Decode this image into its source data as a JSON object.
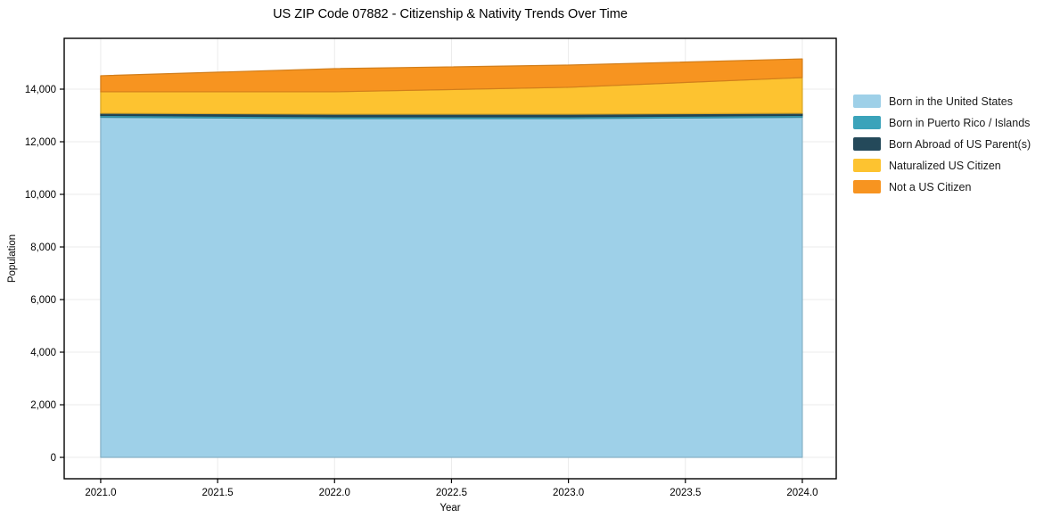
{
  "chart_data": {
    "type": "area",
    "stacked": true,
    "title": "US ZIP Code 07882 - Citizenship & Nativity Trends Over Time",
    "xlabel": "Year",
    "ylabel": "Population",
    "x": [
      2021,
      2022,
      2023,
      2024
    ],
    "series": [
      {
        "name": "Born in the United States",
        "color": "#9ED0E8",
        "values": [
          12930,
          12880,
          12880,
          12930
        ]
      },
      {
        "name": "Born in Puerto Rico / Islands",
        "color": "#3BA3BA",
        "values": [
          70,
          70,
          70,
          70
        ]
      },
      {
        "name": "Born Abroad of US Parent(s)",
        "color": "#24495A",
        "values": [
          85,
          100,
          100,
          85
        ]
      },
      {
        "name": "Naturalized US Citizen",
        "color": "#FDC330",
        "values": [
          815,
          850,
          1020,
          1355
        ]
      },
      {
        "name": "Not a US Citizen",
        "color": "#F79420",
        "values": [
          610,
          880,
          845,
          710
        ]
      }
    ],
    "xlim": [
      2020.844,
      2024.145
    ],
    "ylim": [
      -813,
      15932
    ],
    "x_ticks": [
      2021.0,
      2021.5,
      2022.0,
      2022.5,
      2023.0,
      2023.5,
      2024.0
    ],
    "x_tick_labels": [
      "2021.0",
      "2021.5",
      "2022.0",
      "2022.5",
      "2023.0",
      "2023.5",
      "2024.0"
    ],
    "y_ticks": [
      0,
      2000,
      4000,
      6000,
      8000,
      10000,
      12000,
      14000
    ],
    "y_tick_labels": [
      "0",
      "2,000",
      "4,000",
      "6,000",
      "8,000",
      "10,000",
      "12,000",
      "14,000"
    ],
    "grid": true,
    "grid_color": "#ebebeb",
    "spine_color": "#000000",
    "text_color": "#000000",
    "legend_position": "right-outside"
  }
}
